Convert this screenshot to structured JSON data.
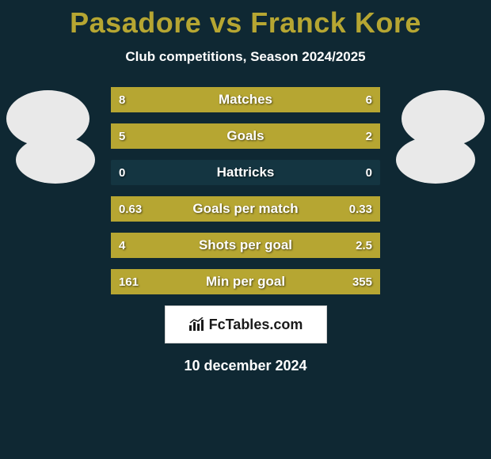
{
  "title": "Pasadore vs Franck Kore",
  "subtitle": "Club competitions, Season 2024/2025",
  "date": "10 december 2024",
  "logo_text": "FcTables.com",
  "colors": {
    "background": "#0f2833",
    "bar_track": "#143541",
    "left_bar": "#b6a632",
    "right_bar": "#b6a632",
    "title": "#b6a632",
    "text": "#ffffff",
    "avatar_bg": "#e9e9e9"
  },
  "stats": [
    {
      "label": "Matches",
      "left_val": "8",
      "right_val": "6",
      "left_pct": 57,
      "right_pct": 43
    },
    {
      "label": "Goals",
      "left_val": "5",
      "right_val": "2",
      "left_pct": 71,
      "right_pct": 29
    },
    {
      "label": "Hattricks",
      "left_val": "0",
      "right_val": "0",
      "left_pct": 0,
      "right_pct": 0
    },
    {
      "label": "Goals per match",
      "left_val": "0.63",
      "right_val": "0.33",
      "left_pct": 66,
      "right_pct": 34
    },
    {
      "label": "Shots per goal",
      "left_val": "4",
      "right_val": "2.5",
      "left_pct": 62,
      "right_pct": 38
    },
    {
      "label": "Min per goal",
      "left_val": "161",
      "right_val": "355",
      "left_pct": 31,
      "right_pct": 69
    }
  ]
}
